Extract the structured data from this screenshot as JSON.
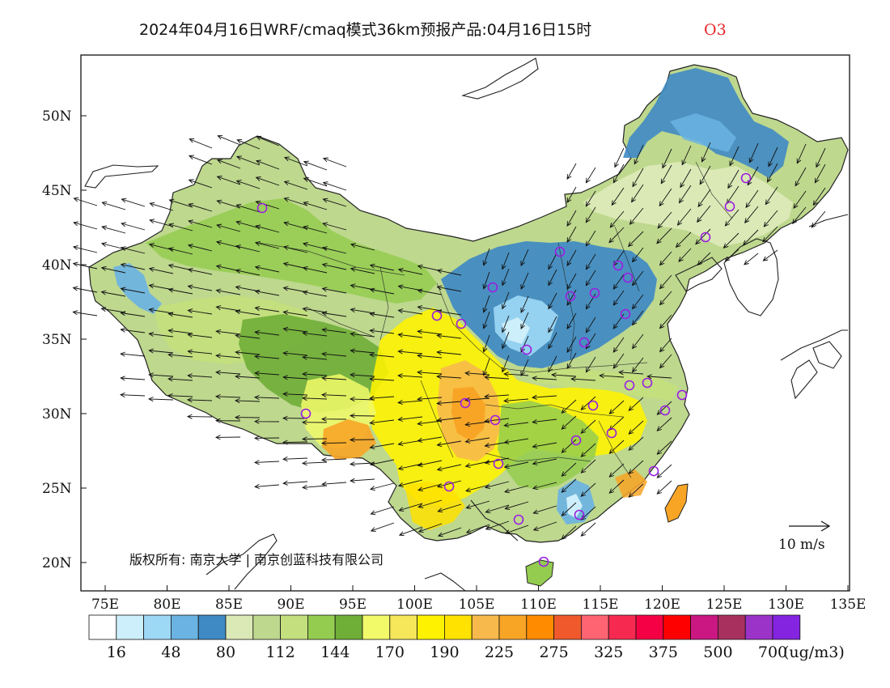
{
  "title": {
    "main": "2024年04月16日WRF/cmaq模式36km预报产品:04月16日15时",
    "species": "O3",
    "species_color": "#e8262a"
  },
  "map": {
    "lat_labels": [
      "50N",
      "45N",
      "40N",
      "35N",
      "30N",
      "25N",
      "20N"
    ],
    "lon_labels": [
      "75E",
      "80E",
      "85E",
      "90E",
      "95E",
      "100E",
      "105E",
      "110E",
      "115E",
      "120E",
      "125E",
      "130E",
      "135E"
    ],
    "copyright": "版权所有: 南京大学 | 南京创蓝科技有限公司",
    "reference_vector_label": "10 m/s"
  },
  "legend": {
    "colors": [
      "#ffffff",
      "#cdeefb",
      "#9dd8f5",
      "#6ab3e3",
      "#3f8ac4",
      "#dbe9b6",
      "#bed88e",
      "#c3df7e",
      "#94cc4f",
      "#6fae37",
      "#f2fa6a",
      "#f5e65a",
      "#fff200",
      "#ffe200",
      "#f7b94b",
      "#f8a526",
      "#ff8c00",
      "#f0592b",
      "#ff6472",
      "#f62a50",
      "#f50044",
      "#ff0000",
      "#ca1782",
      "#a8305f",
      "#9b33c9",
      "#8424e0"
    ],
    "labels": [
      "16",
      "48",
      "80",
      "112",
      "144",
      "170",
      "190",
      "225",
      "275",
      "325",
      "375",
      "500",
      "700"
    ],
    "unit": "(ug/m3)"
  },
  "stations": {
    "marker_color": "#9b1fe0",
    "count": 31
  }
}
